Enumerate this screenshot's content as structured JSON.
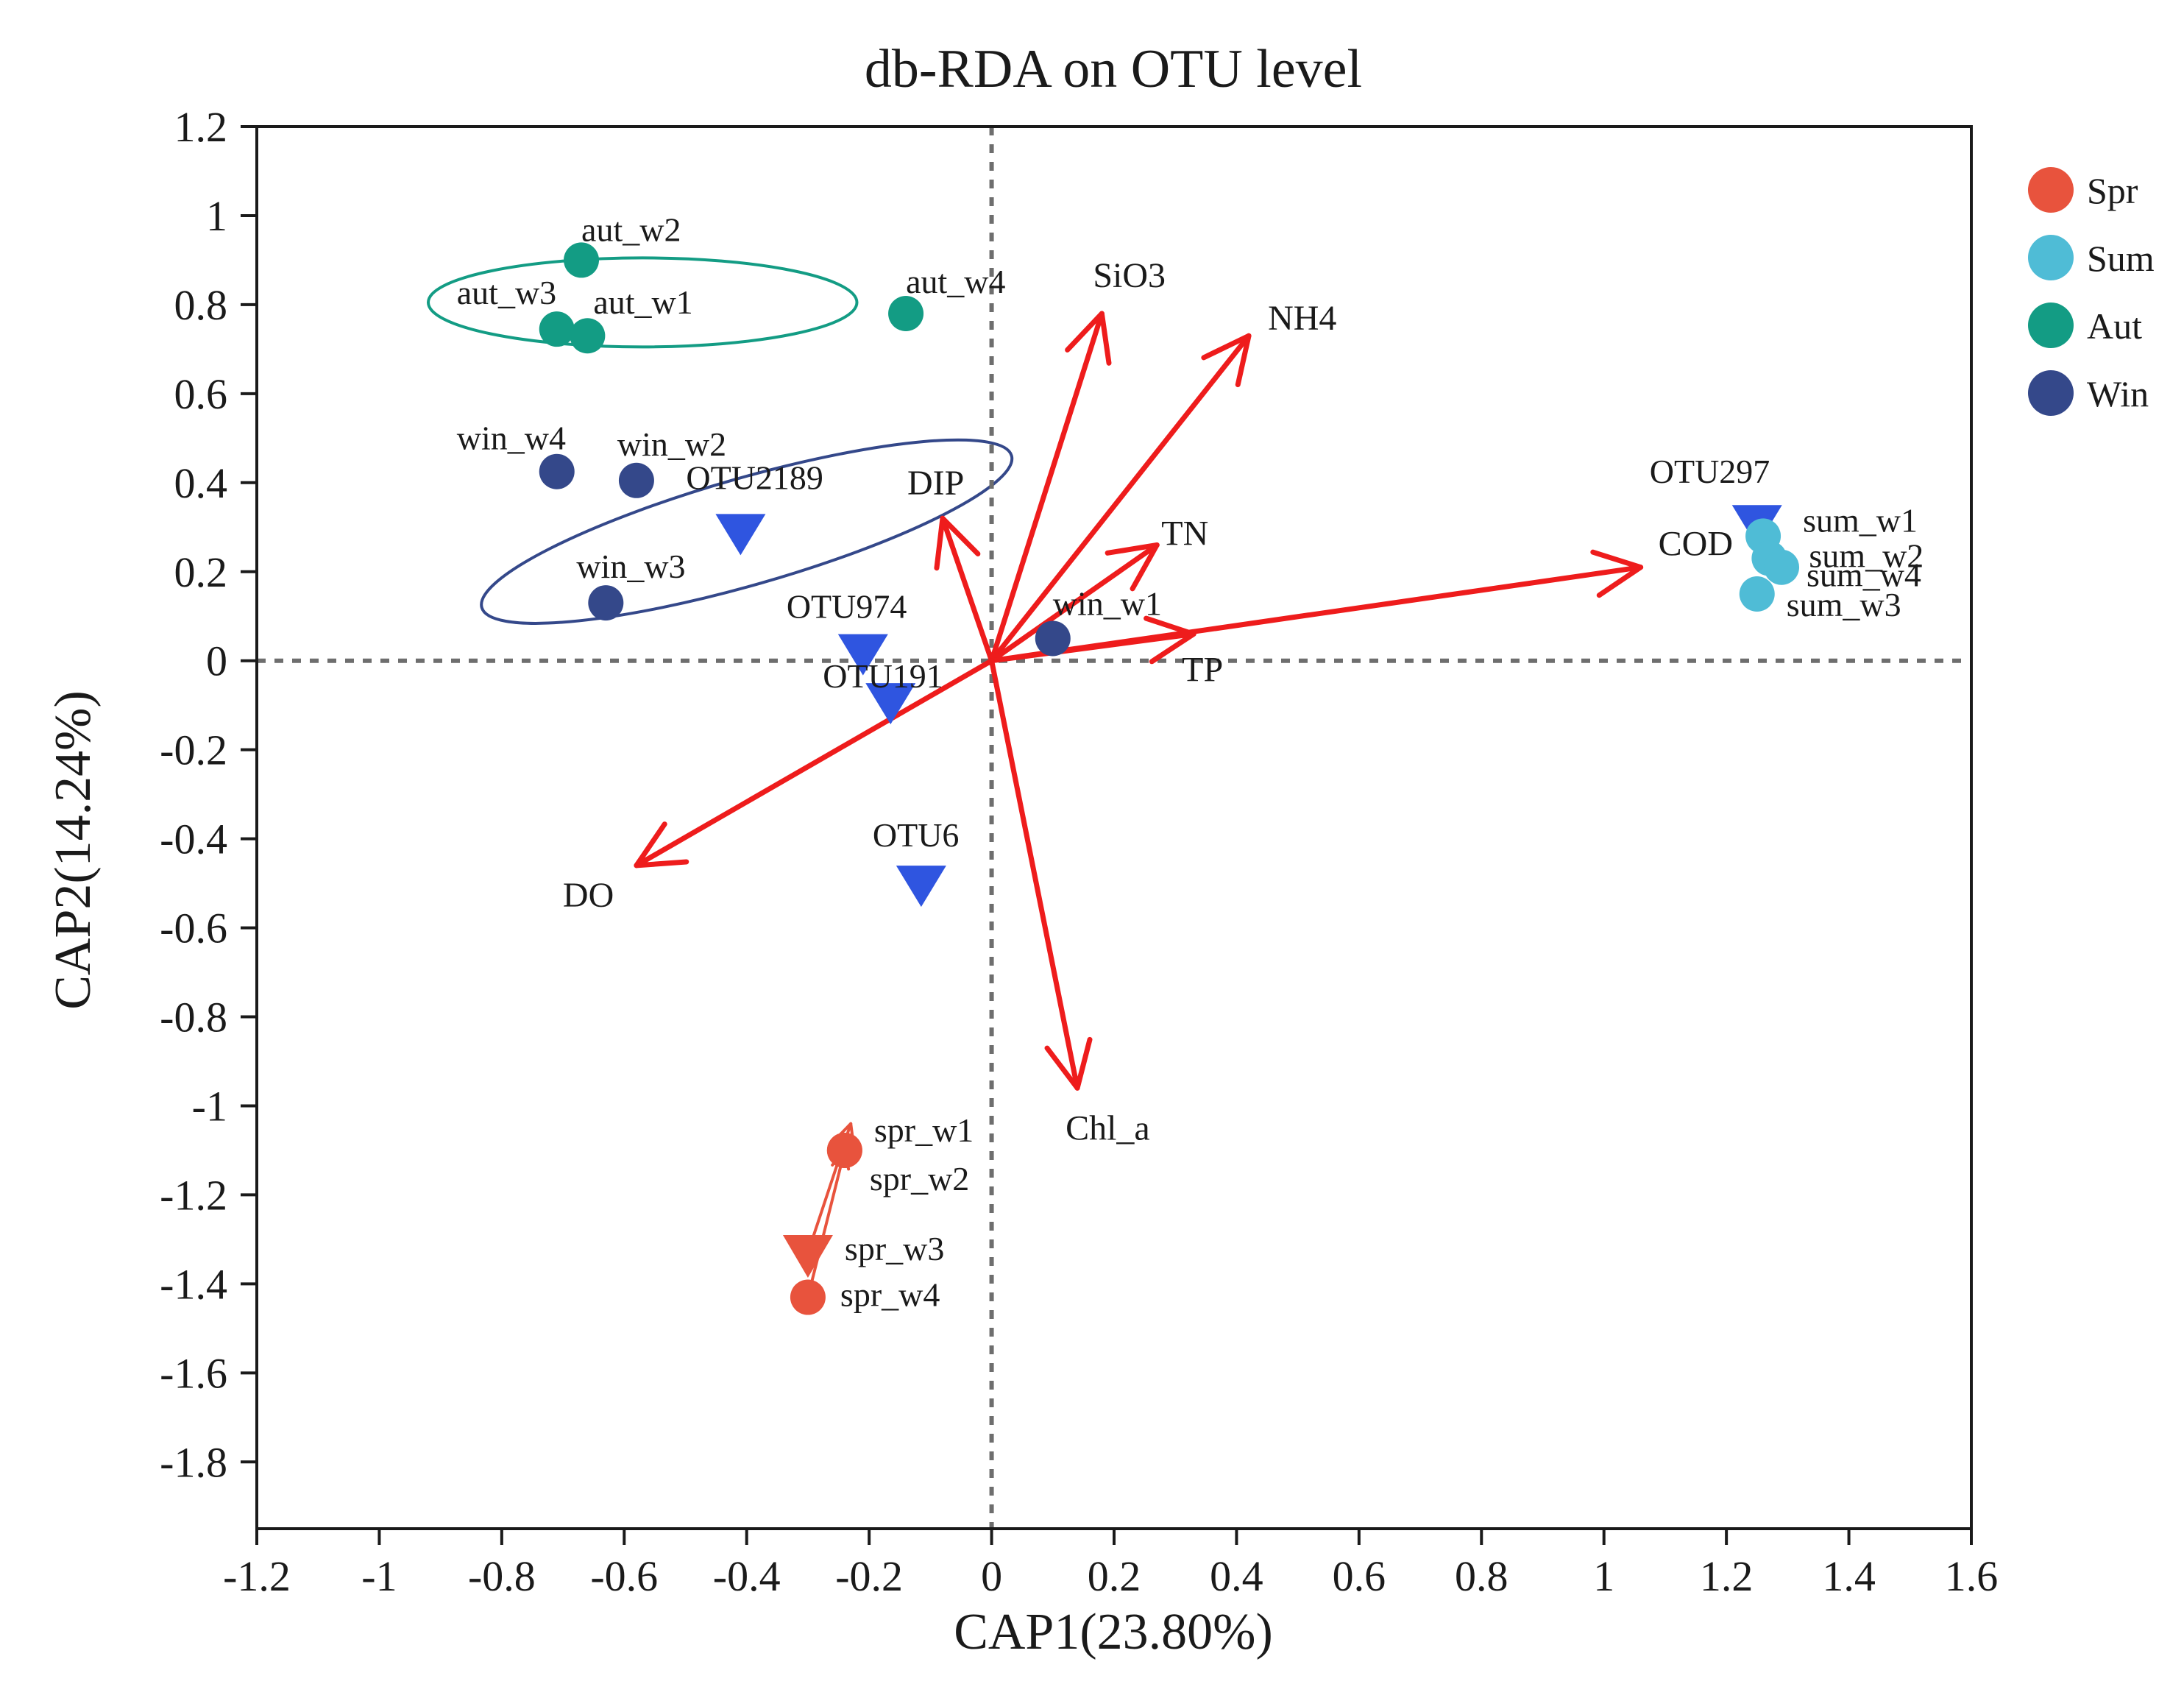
{
  "chart_data": {
    "type": "scatter",
    "title": "db-RDA on OTU level",
    "xlabel": "CAP1(23.80%)",
    "ylabel": "CAP2(14.24%)",
    "xlim": [
      -1.2,
      1.6
    ],
    "ylim": [
      -1.95,
      1.2
    ],
    "xticks": [
      -1.2,
      -1,
      -0.8,
      -0.6,
      -0.4,
      -0.2,
      0,
      0.2,
      0.4,
      0.6,
      0.8,
      1,
      1.2,
      1.4,
      1.6
    ],
    "xtick_labels": [
      "-1.2",
      "-1",
      "-0.8",
      "-0.6",
      "-0.4",
      "-0.2",
      "0",
      "0.2",
      "0.4",
      "0.6",
      "0.8",
      "1",
      "1.2",
      "1.4",
      "1.6"
    ],
    "yticks": [
      1.2,
      1,
      0.8,
      0.6,
      0.4,
      0.2,
      0,
      -0.2,
      -0.4,
      -0.6,
      -0.8,
      -1,
      -1.2,
      -1.4,
      -1.6,
      -1.8
    ],
    "ytick_labels": [
      "1.2",
      "1",
      "0.8",
      "0.6",
      "0.4",
      "0.2",
      "0",
      "-0.2",
      "-0.4",
      "-0.6",
      "-0.8",
      "-1",
      "-1.2",
      "-1.4",
      "-1.6",
      "-1.8"
    ],
    "legend": {
      "placement": "outside-right-top",
      "entries": [
        {
          "name": "Spr",
          "color": "#e8533d"
        },
        {
          "name": "Sum",
          "color": "#4fbcd6"
        },
        {
          "name": "Aut",
          "color": "#139c84"
        },
        {
          "name": "Win",
          "color": "#34488a"
        }
      ]
    },
    "series": [
      {
        "name": "Spr",
        "color": "#e8533d",
        "points": [
          {
            "label": "spr_w1",
            "x": -0.24,
            "y": -1.1
          },
          {
            "label": "spr_w2",
            "x": -0.24,
            "y": -1.1
          },
          {
            "label": "spr_w3",
            "x": -0.3,
            "y": -1.33
          },
          {
            "label": "spr_w4",
            "x": -0.3,
            "y": -1.43
          }
        ]
      },
      {
        "name": "Sum",
        "color": "#4fbcd6",
        "points": [
          {
            "label": "sum_w1",
            "x": 1.26,
            "y": 0.28
          },
          {
            "label": "sum_w2",
            "x": 1.27,
            "y": 0.23
          },
          {
            "label": "sum_w4",
            "x": 1.29,
            "y": 0.21
          },
          {
            "label": "sum_w3",
            "x": 1.25,
            "y": 0.15
          }
        ]
      },
      {
        "name": "Aut",
        "color": "#139c84",
        "points": [
          {
            "label": "aut_w2",
            "x": -0.67,
            "y": 0.9
          },
          {
            "label": "aut_w3",
            "x": -0.71,
            "y": 0.745
          },
          {
            "label": "aut_w1",
            "x": -0.66,
            "y": 0.73
          },
          {
            "label": "aut_w4",
            "x": -0.14,
            "y": 0.78
          }
        ]
      },
      {
        "name": "Win",
        "color": "#34488a",
        "points": [
          {
            "label": "win_w4",
            "x": -0.71,
            "y": 0.425
          },
          {
            "label": "win_w2",
            "x": -0.58,
            "y": 0.405
          },
          {
            "label": "win_w3",
            "x": -0.63,
            "y": 0.13
          },
          {
            "label": "win_w1",
            "x": 0.1,
            "y": 0.05
          }
        ]
      }
    ],
    "species": {
      "color": "#2f55e0",
      "points": [
        {
          "label": "OTU2189",
          "x": -0.41,
          "y": 0.29
        },
        {
          "label": "OTU974",
          "x": -0.21,
          "y": 0.02
        },
        {
          "label": "OTU191",
          "x": -0.165,
          "y": -0.09
        },
        {
          "label": "OTU6",
          "x": -0.115,
          "y": -0.5
        },
        {
          "label": "OTU297",
          "x": 1.25,
          "y": 0.31
        }
      ]
    },
    "vectors": {
      "color": "#ee1c1c",
      "arrows": [
        {
          "label": "SiO3",
          "x": 0.18,
          "y": 0.78
        },
        {
          "label": "NH4",
          "x": 0.42,
          "y": 0.73
        },
        {
          "label": "TN",
          "x": 0.27,
          "y": 0.26
        },
        {
          "label": "DIP",
          "x": -0.08,
          "y": 0.32
        },
        {
          "label": "COD",
          "x": 1.06,
          "y": 0.21
        },
        {
          "label": "TP",
          "x": 0.33,
          "y": 0.06
        },
        {
          "label": "DO",
          "x": -0.58,
          "y": -0.46
        },
        {
          "label": "Chl_a",
          "x": 0.14,
          "y": -0.96
        }
      ]
    },
    "group_ellipses": [
      {
        "group": "Aut",
        "color": "#139c84",
        "center_x": -0.57,
        "center_y": 0.805,
        "radius_x": 0.35,
        "radius_y": 0.1,
        "angle_deg": 0
      },
      {
        "group": "Win",
        "color": "#34488a",
        "center_x": -0.4,
        "center_y": 0.29,
        "radius_x": 0.45,
        "radius_y": 0.12,
        "angle_deg": -16
      }
    ],
    "spring_arrows": [
      {
        "from_x": -0.3,
        "from_y": -1.33,
        "to_x": -0.23,
        "to_y": -1.04
      },
      {
        "from_x": -0.3,
        "from_y": -1.43,
        "to_x": -0.24,
        "to_y": -1.1
      }
    ],
    "grid": false,
    "reference_lines": [
      {
        "axis": "x",
        "value": 0
      },
      {
        "axis": "y",
        "value": 0
      }
    ]
  }
}
